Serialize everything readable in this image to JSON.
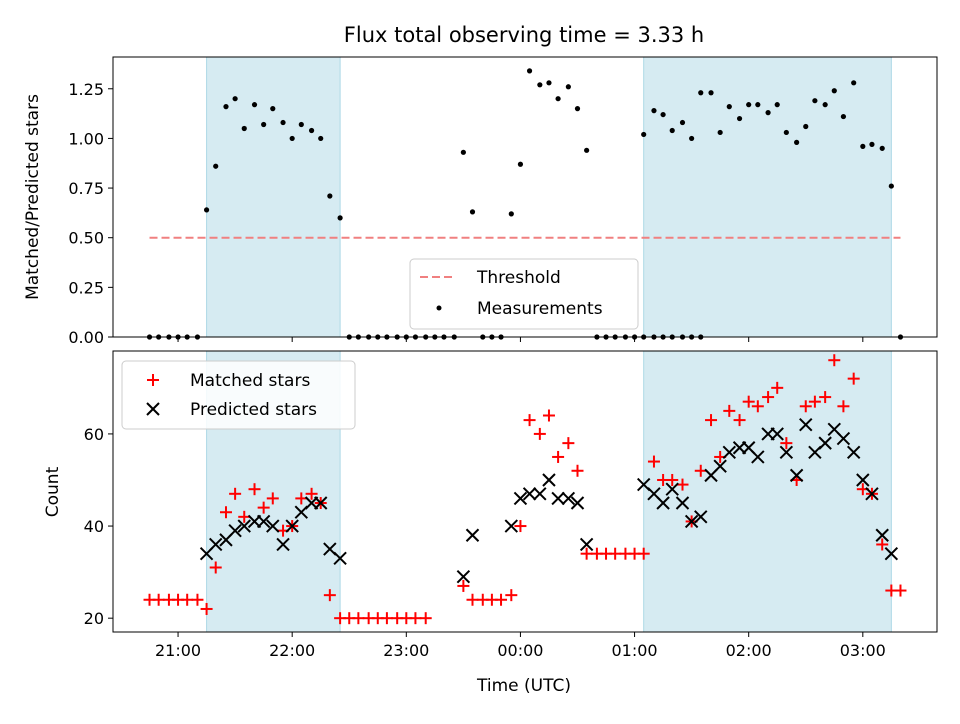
{
  "chart_data": [
    {
      "type": "scatter",
      "title": "Flux total observing time = 3.33 h",
      "ylabel": "Matched/Predicted stars",
      "xlabel": "",
      "x_unit": "hours after 21:00 UTC",
      "xlim": [
        -0.57,
        6.65
      ],
      "ylim": [
        0,
        1.41
      ],
      "yticks": [
        "0.00",
        "0.25",
        "0.50",
        "0.75",
        "1.00",
        "1.25"
      ],
      "ytick_values": [
        0,
        0.25,
        0.5,
        0.75,
        1.0,
        1.25
      ],
      "shaded_spans": [
        [
          0.25,
          1.42
        ],
        [
          4.08,
          6.25
        ]
      ],
      "threshold": {
        "name": "Threshold",
        "value": 0.5,
        "x": [
          -0.25,
          6.33
        ],
        "color": "#f08080"
      },
      "legend": {
        "placement": "lower-center",
        "entries": [
          "Threshold",
          "Measurements"
        ]
      },
      "series": [
        {
          "name": "Measurements",
          "color": "#000000",
          "points": [
            [
              -0.25,
              0
            ],
            [
              -0.17,
              0
            ],
            [
              -0.08,
              0
            ],
            [
              0.0,
              0
            ],
            [
              0.08,
              0
            ],
            [
              0.17,
              0
            ],
            [
              0.25,
              0.64
            ],
            [
              0.33,
              0.86
            ],
            [
              0.42,
              1.16
            ],
            [
              0.5,
              1.2
            ],
            [
              0.58,
              1.05
            ],
            [
              0.67,
              1.17
            ],
            [
              0.75,
              1.07
            ],
            [
              0.83,
              1.15
            ],
            [
              0.92,
              1.08
            ],
            [
              1.0,
              1.0
            ],
            [
              1.08,
              1.07
            ],
            [
              1.17,
              1.04
            ],
            [
              1.25,
              1.0
            ],
            [
              1.33,
              0.71
            ],
            [
              1.42,
              0.6
            ],
            [
              1.5,
              0
            ],
            [
              1.58,
              0
            ],
            [
              1.67,
              0
            ],
            [
              1.75,
              0
            ],
            [
              1.83,
              0
            ],
            [
              1.92,
              0
            ],
            [
              2.0,
              0
            ],
            [
              2.08,
              0
            ],
            [
              2.17,
              0
            ],
            [
              2.25,
              0
            ],
            [
              2.33,
              0
            ],
            [
              2.42,
              0
            ],
            [
              2.5,
              0.93
            ],
            [
              2.58,
              0.63
            ],
            [
              2.67,
              0
            ],
            [
              2.75,
              0
            ],
            [
              2.83,
              0
            ],
            [
              2.92,
              0.62
            ],
            [
              3.0,
              0.87
            ],
            [
              3.08,
              1.34
            ],
            [
              3.17,
              1.27
            ],
            [
              3.25,
              1.28
            ],
            [
              3.33,
              1.2
            ],
            [
              3.42,
              1.26
            ],
            [
              3.5,
              1.15
            ],
            [
              3.58,
              0.94
            ],
            [
              3.67,
              0
            ],
            [
              3.75,
              0
            ],
            [
              3.83,
              0
            ],
            [
              3.92,
              0
            ],
            [
              4.0,
              0
            ],
            [
              4.08,
              0
            ],
            [
              4.17,
              0
            ],
            [
              4.25,
              0
            ],
            [
              4.33,
              0
            ],
            [
              4.42,
              0
            ],
            [
              4.5,
              0
            ],
            [
              4.58,
              0
            ],
            [
              4.08,
              1.02
            ],
            [
              4.17,
              1.14
            ],
            [
              4.25,
              1.12
            ],
            [
              4.33,
              1.04
            ],
            [
              4.42,
              1.08
            ],
            [
              4.5,
              1.0
            ],
            [
              4.58,
              1.23
            ],
            [
              4.67,
              1.23
            ],
            [
              4.75,
              1.03
            ],
            [
              4.83,
              1.16
            ],
            [
              4.92,
              1.1
            ],
            [
              5.0,
              1.17
            ],
            [
              5.08,
              1.17
            ],
            [
              5.17,
              1.13
            ],
            [
              5.25,
              1.17
            ],
            [
              5.33,
              1.03
            ],
            [
              5.42,
              0.98
            ],
            [
              5.5,
              1.06
            ],
            [
              5.58,
              1.19
            ],
            [
              5.67,
              1.17
            ],
            [
              5.75,
              1.24
            ],
            [
              5.83,
              1.11
            ],
            [
              5.92,
              1.28
            ],
            [
              6.0,
              0.96
            ],
            [
              6.08,
              0.97
            ],
            [
              6.17,
              0.95
            ],
            [
              6.25,
              0.76
            ],
            [
              6.33,
              0
            ]
          ]
        }
      ]
    },
    {
      "type": "scatter",
      "title": "",
      "xlabel": "Time (UTC)",
      "ylabel": "Count",
      "x_unit": "hours after 21:00 UTC",
      "xlim": [
        -0.57,
        6.65
      ],
      "ylim": [
        17,
        78
      ],
      "yticks": [
        "20",
        "40",
        "60"
      ],
      "ytick_values": [
        20,
        40,
        60
      ],
      "xticks": [
        "21:00",
        "22:00",
        "23:00",
        "00:00",
        "01:00",
        "02:00",
        "03:00"
      ],
      "xtick_values": [
        0,
        1,
        2,
        3,
        4,
        5,
        6
      ],
      "shaded_spans": [
        [
          0.25,
          1.42
        ],
        [
          4.08,
          6.25
        ]
      ],
      "legend": {
        "placement": "upper-left",
        "entries": [
          "Matched stars",
          "Predicted stars"
        ]
      },
      "series": [
        {
          "name": "Matched stars",
          "marker": "plus",
          "color": "#ff0000",
          "points": [
            [
              -0.25,
              24
            ],
            [
              -0.17,
              24
            ],
            [
              -0.08,
              24
            ],
            [
              0.0,
              24
            ],
            [
              0.08,
              24
            ],
            [
              0.17,
              24
            ],
            [
              0.25,
              22
            ],
            [
              0.33,
              31
            ],
            [
              0.42,
              43
            ],
            [
              0.5,
              47
            ],
            [
              0.58,
              42
            ],
            [
              0.67,
              48
            ],
            [
              0.75,
              44
            ],
            [
              0.83,
              46
            ],
            [
              0.92,
              39
            ],
            [
              1.0,
              40
            ],
            [
              1.08,
              46
            ],
            [
              1.17,
              47
            ],
            [
              1.25,
              45
            ],
            [
              1.33,
              25
            ],
            [
              1.42,
              20
            ],
            [
              1.5,
              20
            ],
            [
              1.58,
              20
            ],
            [
              1.67,
              20
            ],
            [
              1.75,
              20
            ],
            [
              1.83,
              20
            ],
            [
              1.92,
              20
            ],
            [
              2.0,
              20
            ],
            [
              2.08,
              20
            ],
            [
              2.17,
              20
            ],
            [
              2.5,
              27
            ],
            [
              2.58,
              24
            ],
            [
              2.67,
              24
            ],
            [
              2.75,
              24
            ],
            [
              2.83,
              24
            ],
            [
              2.92,
              25
            ],
            [
              3.0,
              40
            ],
            [
              3.08,
              63
            ],
            [
              3.17,
              60
            ],
            [
              3.25,
              64
            ],
            [
              3.33,
              55
            ],
            [
              3.42,
              58
            ],
            [
              3.5,
              52
            ],
            [
              3.58,
              34
            ],
            [
              3.67,
              34
            ],
            [
              3.75,
              34
            ],
            [
              3.83,
              34
            ],
            [
              3.92,
              34
            ],
            [
              4.0,
              34
            ],
            [
              4.08,
              34
            ],
            [
              4.17,
              54
            ],
            [
              4.25,
              50
            ],
            [
              4.33,
              50
            ],
            [
              4.42,
              49
            ],
            [
              4.5,
              41
            ],
            [
              4.58,
              52
            ],
            [
              4.67,
              63
            ],
            [
              4.75,
              55
            ],
            [
              4.83,
              65
            ],
            [
              4.92,
              63
            ],
            [
              5.0,
              67
            ],
            [
              5.08,
              66
            ],
            [
              5.17,
              68
            ],
            [
              5.25,
              70
            ],
            [
              5.33,
              58
            ],
            [
              5.42,
              50
            ],
            [
              5.5,
              66
            ],
            [
              5.58,
              67
            ],
            [
              5.67,
              68
            ],
            [
              5.75,
              76
            ],
            [
              5.83,
              66
            ],
            [
              5.92,
              72
            ],
            [
              6.0,
              48
            ],
            [
              6.08,
              47
            ],
            [
              6.17,
              36
            ],
            [
              6.25,
              26
            ],
            [
              6.33,
              26
            ]
          ]
        },
        {
          "name": "Predicted stars",
          "marker": "x",
          "color": "#000000",
          "points": [
            [
              0.25,
              34
            ],
            [
              0.33,
              36
            ],
            [
              0.42,
              37
            ],
            [
              0.5,
              39
            ],
            [
              0.58,
              40
            ],
            [
              0.67,
              41
            ],
            [
              0.75,
              41
            ],
            [
              0.83,
              40
            ],
            [
              0.92,
              36
            ],
            [
              1.0,
              40
            ],
            [
              1.08,
              43
            ],
            [
              1.17,
              45
            ],
            [
              1.25,
              45
            ],
            [
              1.33,
              35
            ],
            [
              1.42,
              33
            ],
            [
              2.5,
              29
            ],
            [
              2.58,
              38
            ],
            [
              2.92,
              40
            ],
            [
              3.0,
              46
            ],
            [
              3.08,
              47
            ],
            [
              3.17,
              47
            ],
            [
              3.25,
              50
            ],
            [
              3.33,
              46
            ],
            [
              3.42,
              46
            ],
            [
              3.5,
              45
            ],
            [
              3.58,
              36
            ],
            [
              4.08,
              49
            ],
            [
              4.17,
              47
            ],
            [
              4.25,
              45
            ],
            [
              4.33,
              48
            ],
            [
              4.42,
              45
            ],
            [
              4.5,
              41
            ],
            [
              4.58,
              42
            ],
            [
              4.67,
              51
            ],
            [
              4.75,
              53
            ],
            [
              4.83,
              56
            ],
            [
              4.92,
              57
            ],
            [
              5.0,
              57
            ],
            [
              5.08,
              55
            ],
            [
              5.17,
              60
            ],
            [
              5.25,
              60
            ],
            [
              5.33,
              56
            ],
            [
              5.42,
              51
            ],
            [
              5.5,
              62
            ],
            [
              5.58,
              56
            ],
            [
              5.67,
              58
            ],
            [
              5.75,
              61
            ],
            [
              5.83,
              59
            ],
            [
              5.92,
              56
            ],
            [
              6.0,
              50
            ],
            [
              6.08,
              47
            ],
            [
              6.17,
              38
            ],
            [
              6.25,
              34
            ]
          ]
        }
      ]
    }
  ]
}
